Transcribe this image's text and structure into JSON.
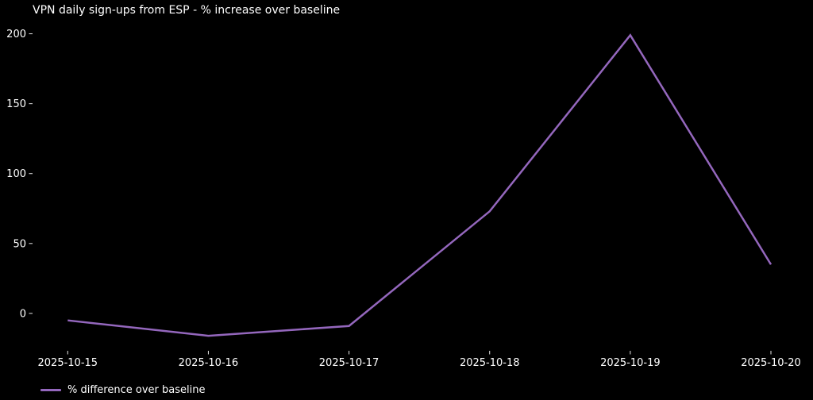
{
  "chart_data": {
    "type": "line",
    "title": "VPN daily sign-ups from ESP - % increase over baseline",
    "title_align": "left",
    "x": [
      "2025-10-15",
      "2025-10-16",
      "2025-10-17",
      "2025-10-18",
      "2025-10-19",
      "2025-10-20"
    ],
    "series": [
      {
        "name": "% difference over baseline",
        "values": [
          -5,
          -16,
          -9,
          73,
          199,
          35
        ],
        "color": "#9467bd"
      }
    ],
    "yticks": [
      0,
      50,
      100,
      150,
      200
    ],
    "ylim": [
      -26.75,
      209.75
    ],
    "xlim": [
      -0.25,
      5.25
    ],
    "xlabel": "",
    "ylabel": "",
    "grid": false,
    "legend_position": "lower-left-outside",
    "background_color": "#000000",
    "text_color": "#ffffff",
    "tick_color": "#e6e6e6"
  }
}
